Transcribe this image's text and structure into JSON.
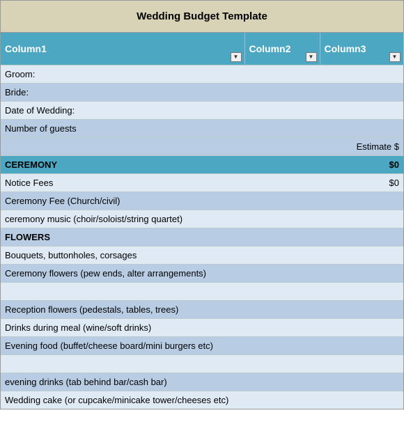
{
  "title": "Wedding Budget Template",
  "columns": [
    "Column1",
    "Column2",
    "Column3"
  ],
  "rows": [
    {
      "style": "light",
      "c1": "Groom:",
      "c2": "",
      "c3": ""
    },
    {
      "style": "med",
      "c1": "Bride:",
      "c2": "",
      "c3": ""
    },
    {
      "style": "light",
      "c1": "Date of Wedding:",
      "c2": "",
      "c3": ""
    },
    {
      "style": "med",
      "c1": "Number of guests",
      "c2": "",
      "c3": ""
    },
    {
      "style": "med",
      "c1": "",
      "c2": "",
      "c3": "Estimate $",
      "c3_align": "right"
    },
    {
      "style": "teal",
      "c1": "CEREMONY",
      "c1_bold": true,
      "c2": "",
      "c3": "$0",
      "c3_align": "right"
    },
    {
      "style": "light",
      "c1": "Notice Fees",
      "c2": "",
      "c3": "$0",
      "c3_align": "right"
    },
    {
      "style": "med",
      "c1": "Ceremony Fee (Church/civil)",
      "c2": "",
      "c3": ""
    },
    {
      "style": "light",
      "c1": "ceremony music (choir/soloist/string quartet)",
      "c2": "",
      "c3": ""
    },
    {
      "style": "med",
      "c1": "FLOWERS",
      "c1_bold": true,
      "c2": "",
      "c3": ""
    },
    {
      "style": "light",
      "c1": "Bouquets, buttonholes, corsages",
      "c2": "",
      "c3": ""
    },
    {
      "style": "med",
      "c1": "Ceremony flowers (pew ends, alter arrangements)",
      "c2": "",
      "c3": ""
    },
    {
      "style": "light",
      "c1": "",
      "c2": "",
      "c3": ""
    },
    {
      "style": "med",
      "c1": "Reception flowers (pedestals, tables, trees)",
      "c2": "",
      "c3": ""
    },
    {
      "style": "light",
      "c1": "Drinks during meal (wine/soft drinks)",
      "c2": "",
      "c3": ""
    },
    {
      "style": "med",
      "c1": "Evening food (buffet/cheese board/mini burgers etc)",
      "c2": "",
      "c3": ""
    },
    {
      "style": "light",
      "c1": "",
      "c2": "",
      "c3": ""
    },
    {
      "style": "med",
      "c1": "evening drinks (tab behind bar/cash bar)",
      "c2": "",
      "c3": ""
    },
    {
      "style": "light",
      "c1": "Wedding cake (or cupcake/minicake tower/cheeses etc)",
      "c2": "",
      "c3": ""
    }
  ]
}
